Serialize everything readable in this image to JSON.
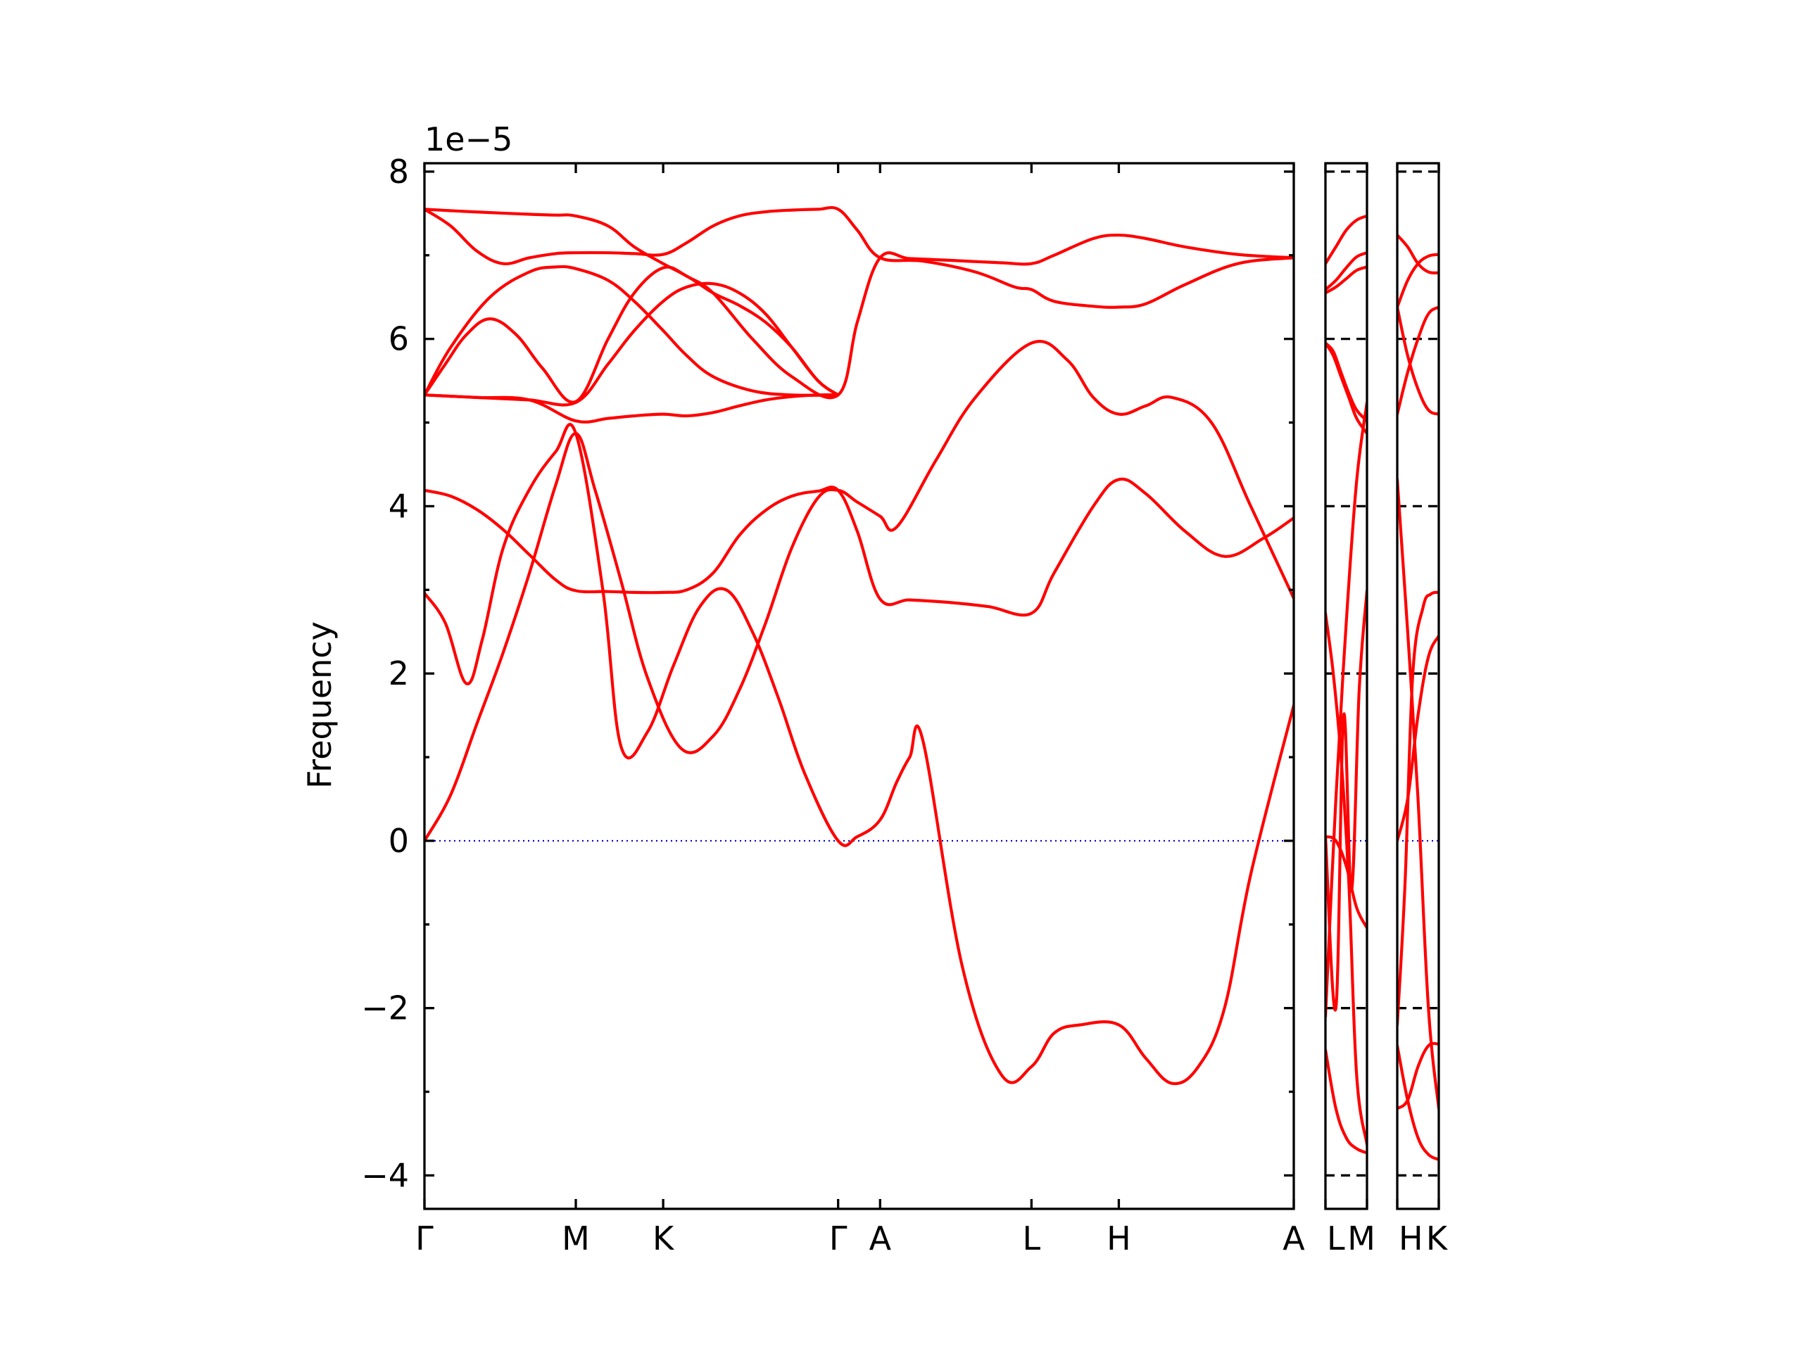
{
  "chart_data": {
    "type": "line",
    "ylabel": "Frequency",
    "y_multiplier_label": "1e−5",
    "ylim": [
      -4.4,
      8.1
    ],
    "yticks": [
      -4,
      -2,
      0,
      2,
      4,
      6,
      8
    ],
    "ytick_labels": [
      "−4",
      "−2",
      "0",
      "2",
      "4",
      "6",
      "8"
    ],
    "grid": false,
    "zero_line": {
      "y": 0,
      "color": "#0000cc",
      "style": "dotted"
    },
    "band_color": "#ff0000",
    "panels": [
      {
        "id": "main",
        "high_symmetry_points": [
          {
            "label": "Γ",
            "x": 0.0
          },
          {
            "label": "M",
            "x": 0.577
          },
          {
            "label": "K",
            "x": 0.91
          },
          {
            "label": "Γ",
            "x": 1.577
          },
          {
            "label": "A",
            "x": 1.737
          },
          {
            "label": "L",
            "x": 2.314
          },
          {
            "label": "H",
            "x": 2.647
          },
          {
            "label": "A",
            "x": 3.314
          }
        ],
        "xlim": [
          0.0,
          3.314
        ],
        "bands": [
          {
            "x": [
              0.0,
              0.12,
              0.25,
              0.4,
              0.5,
              0.577,
              0.7,
              0.8,
              0.91,
              1.0,
              1.1,
              1.25,
              1.4,
              1.577,
              1.65,
              1.737,
              1.85,
              2.0,
              2.2,
              2.314,
              2.4,
              2.55,
              2.647,
              2.75,
              2.9,
              3.1,
              3.314
            ],
            "y": [
              7.55,
              7.53,
              7.51,
              7.49,
              7.48,
              7.47,
              7.35,
              7.1,
              6.9,
              6.75,
              6.55,
              6.0,
              5.55,
              5.33,
              6.2,
              6.97,
              6.96,
              6.94,
              6.91,
              6.9,
              7.0,
              7.2,
              7.24,
              7.2,
              7.1,
              7.01,
              6.97
            ]
          },
          {
            "x": [
              0.0,
              0.1,
              0.2,
              0.3,
              0.4,
              0.5,
              0.577,
              0.7,
              0.8,
              0.91,
              1.0,
              1.1,
              1.2,
              1.3,
              1.4,
              1.5,
              1.577,
              1.65,
              1.737,
              1.9,
              2.1,
              2.25,
              2.314,
              2.4,
              2.55,
              2.647,
              2.75,
              2.9,
              3.1,
              3.314
            ],
            "y": [
              7.55,
              7.35,
              7.05,
              6.9,
              6.97,
              7.02,
              7.03,
              7.03,
              7.02,
              7.01,
              7.15,
              7.35,
              7.47,
              7.52,
              7.54,
              7.55,
              7.55,
              7.3,
              6.97,
              6.93,
              6.8,
              6.62,
              6.59,
              6.45,
              6.39,
              6.38,
              6.42,
              6.65,
              6.9,
              6.97
            ]
          },
          {
            "x": [
              0.0,
              0.1,
              0.25,
              0.4,
              0.5,
              0.577,
              0.7,
              0.8,
              0.91,
              1.0,
              1.1,
              1.25,
              1.4,
              1.577
            ],
            "y": [
              5.33,
              5.9,
              6.5,
              6.8,
              6.86,
              6.84,
              6.7,
              6.45,
              6.1,
              5.8,
              5.55,
              5.38,
              5.33,
              5.33
            ]
          },
          {
            "x": [
              0.0,
              0.08,
              0.16,
              0.25,
              0.35,
              0.45,
              0.577,
              0.7,
              0.8,
              0.91,
              1.0,
              1.1,
              1.2,
              1.3,
              1.4,
              1.5,
              1.577
            ],
            "y": [
              5.33,
              5.7,
              6.05,
              6.24,
              6.05,
              5.65,
              5.25,
              6.0,
              6.55,
              6.85,
              6.75,
              6.55,
              6.4,
              6.2,
              5.9,
              5.5,
              5.33
            ]
          },
          {
            "x": [
              0.0,
              0.2,
              0.4,
              0.577,
              0.7,
              0.8,
              0.91,
              1.0,
              1.1,
              1.2,
              1.3,
              1.4,
              1.5,
              1.577
            ],
            "y": [
              5.33,
              5.3,
              5.27,
              5.24,
              5.7,
              6.1,
              6.45,
              6.62,
              6.66,
              6.55,
              6.3,
              5.9,
              5.5,
              5.33
            ]
          },
          {
            "x": [
              0.0,
              0.2,
              0.4,
              0.577,
              0.7,
              0.8,
              0.91,
              1.0,
              1.1,
              1.2,
              1.3,
              1.4,
              1.5,
              1.577
            ],
            "y": [
              5.33,
              5.3,
              5.27,
              5.02,
              5.05,
              5.08,
              5.1,
              5.08,
              5.12,
              5.2,
              5.27,
              5.31,
              5.33,
              5.33
            ]
          },
          {
            "x": [
              0.0,
              0.1,
              0.2,
              0.3,
              0.4,
              0.5,
              0.577,
              0.7,
              0.8,
              0.91,
              1.0,
              1.1,
              1.2,
              1.3,
              1.4,
              1.5,
              1.577,
              1.65,
              1.737,
              1.85,
              2.0,
              2.15,
              2.314,
              2.4,
              2.55,
              2.647,
              2.75,
              2.9,
              3.05,
              3.2,
              3.314
            ],
            "y": [
              4.19,
              4.12,
              3.96,
              3.72,
              3.42,
              3.12,
              2.99,
              2.98,
              2.97,
              2.97,
              3.0,
              3.2,
              3.65,
              3.95,
              4.12,
              4.18,
              4.19,
              3.7,
              2.89,
              2.88,
              2.85,
              2.8,
              2.72,
              3.2,
              4.0,
              4.32,
              4.15,
              3.7,
              3.4,
              3.62,
              3.86
            ]
          },
          {
            "x": [
              0.0,
              0.1,
              0.2,
              0.3,
              0.4,
              0.5,
              0.577,
              0.65,
              0.75,
              0.85,
              0.98,
              1.1,
              1.2,
              1.3,
              1.4,
              1.5,
              1.577,
              1.65,
              1.737,
              1.8,
              1.95,
              2.1,
              2.314,
              2.45,
              2.55,
              2.647,
              2.75,
              2.85,
              3.0,
              3.15,
              3.314
            ],
            "y": [
              0.0,
              0.55,
              1.4,
              2.25,
              3.2,
              4.25,
              4.87,
              4.2,
              3.1,
              1.95,
              1.1,
              1.25,
              1.8,
              2.6,
              3.5,
              4.1,
              4.19,
              4.05,
              3.88,
              3.75,
              4.55,
              5.3,
              5.95,
              5.75,
              5.3,
              5.1,
              5.2,
              5.3,
              5.0,
              4.0,
              2.9
            ]
          },
          {
            "x": [
              0.0,
              0.08,
              0.16,
              0.22,
              0.3,
              0.4,
              0.5,
              0.577,
              0.68,
              0.75,
              0.85,
              0.95,
              1.05,
              1.15,
              1.25,
              1.35,
              1.45,
              1.577,
              1.65,
              1.737,
              1.8,
              1.85,
              1.9,
              2.05,
              2.2,
              2.314,
              2.4,
              2.5,
              2.647,
              2.75,
              2.85,
              2.95,
              3.05,
              3.15,
              3.314
            ],
            "y": [
              2.96,
              2.6,
              1.88,
              2.4,
              3.5,
              4.2,
              4.65,
              4.87,
              3.0,
              1.12,
              1.3,
              2.1,
              2.8,
              3.0,
              2.5,
              1.7,
              0.8,
              0.0,
              0.05,
              0.25,
              0.7,
              1.0,
              1.2,
              -1.5,
              -2.8,
              -2.7,
              -2.3,
              -2.2,
              -2.2,
              -2.6,
              -2.9,
              -2.7,
              -2.0,
              -0.4,
              1.62
            ]
          }
        ]
      },
      {
        "id": "L-M",
        "high_symmetry_points": [
          {
            "label": "L",
            "x": 0.0
          },
          {
            "label": "M",
            "x": 0.16
          }
        ],
        "xlim": [
          0.0,
          0.16
        ],
        "bands": [
          {
            "x": [
              0.0,
              0.04,
              0.08,
              0.12,
              0.16
            ],
            "y": [
              6.9,
              7.1,
              7.3,
              7.42,
              7.47
            ]
          },
          {
            "x": [
              0.0,
              0.04,
              0.08,
              0.12,
              0.16
            ],
            "y": [
              6.59,
              6.7,
              6.85,
              6.98,
              7.03
            ]
          },
          {
            "x": [
              0.0,
              0.04,
              0.08,
              0.12,
              0.16
            ],
            "y": [
              6.55,
              6.62,
              6.72,
              6.82,
              6.86
            ]
          },
          {
            "x": [
              0.0,
              0.03,
              0.06,
              0.09,
              0.12,
              0.16
            ],
            "y": [
              5.95,
              5.85,
              5.6,
              5.35,
              5.15,
              5.02
            ]
          },
          {
            "x": [
              0.0,
              0.03,
              0.06,
              0.09,
              0.12,
              0.16
            ],
            "y": [
              5.95,
              5.8,
              5.55,
              5.3,
              5.05,
              4.87
            ]
          },
          {
            "x": [
              0.0,
              0.04,
              0.08,
              0.12,
              0.16
            ],
            "y": [
              -2.1,
              0.5,
              2.6,
              4.3,
              5.24
            ]
          },
          {
            "x": [
              0.0,
              0.03,
              0.06,
              0.09,
              0.12,
              0.16
            ],
            "y": [
              2.72,
              2.0,
              1.0,
              -0.5,
              -2.8,
              -3.63
            ]
          },
          {
            "x": [
              0.0,
              0.04,
              0.08,
              0.12,
              0.16
            ],
            "y": [
              -2.5,
              -3.2,
              -3.55,
              -3.68,
              -3.73
            ]
          },
          {
            "x": [
              0.0,
              0.04,
              0.07,
              0.1,
              0.13,
              0.16
            ],
            "y": [
              0.05,
              -2.0,
              1.5,
              -0.6,
              1.8,
              2.99
            ]
          },
          {
            "x": [
              0.0,
              0.04,
              0.08,
              0.12,
              0.16
            ],
            "y": [
              0.05,
              0.0,
              -0.3,
              -0.8,
              -1.04
            ]
          }
        ]
      },
      {
        "id": "H-K",
        "high_symmetry_points": [
          {
            "label": "H",
            "x": 0.0
          },
          {
            "label": "K",
            "x": 0.16
          }
        ],
        "xlim": [
          0.0,
          0.16
        ],
        "bands": [
          {
            "x": [
              0.0,
              0.04,
              0.08,
              0.12,
              0.16
            ],
            "y": [
              7.24,
              7.1,
              6.9,
              6.8,
              6.79
            ]
          },
          {
            "x": [
              0.0,
              0.04,
              0.08,
              0.12,
              0.16
            ],
            "y": [
              6.38,
              6.7,
              6.9,
              6.99,
              7.01
            ]
          },
          {
            "x": [
              0.0,
              0.04,
              0.08,
              0.12,
              0.16
            ],
            "y": [
              6.38,
              5.8,
              5.4,
              5.15,
              5.1
            ]
          },
          {
            "x": [
              0.0,
              0.04,
              0.08,
              0.12,
              0.16
            ],
            "y": [
              5.1,
              5.6,
              6.0,
              6.3,
              6.38
            ]
          },
          {
            "x": [
              0.0,
              0.04,
              0.08,
              0.12,
              0.16
            ],
            "y": [
              4.32,
              2.5,
              0.5,
              -2.0,
              -3.2
            ]
          },
          {
            "x": [
              0.0,
              0.03,
              0.06,
              0.1,
              0.13,
              0.16
            ],
            "y": [
              -2.2,
              -0.5,
              2.0,
              2.8,
              2.95,
              2.97
            ]
          },
          {
            "x": [
              0.0,
              0.04,
              0.08,
              0.12,
              0.16
            ],
            "y": [
              -3.2,
              -3.1,
              -2.7,
              -2.45,
              -2.43
            ]
          },
          {
            "x": [
              0.0,
              0.04,
              0.08,
              0.12,
              0.16
            ],
            "y": [
              -2.45,
              -3.1,
              -3.55,
              -3.75,
              -3.81
            ]
          },
          {
            "x": [
              0.0,
              0.04,
              0.08,
              0.12,
              0.16
            ],
            "y": [
              0.0,
              0.5,
              1.5,
              2.2,
              2.45
            ]
          }
        ]
      }
    ]
  }
}
